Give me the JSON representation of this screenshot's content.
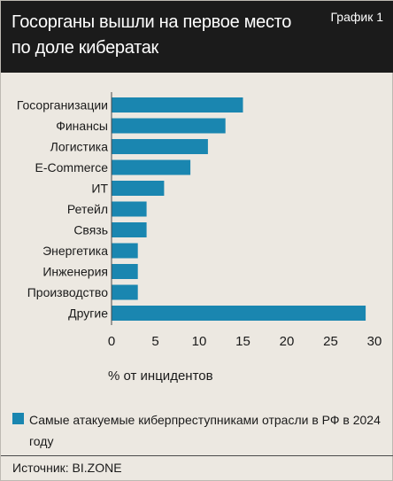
{
  "header": {
    "title": "Госорганы вышли на первое место по доле кибератак",
    "tag": "График 1"
  },
  "chart_data": {
    "type": "bar",
    "orientation": "horizontal",
    "categories": [
      "Госорганизации",
      "Финансы",
      "Логистика",
      "E-Commerce",
      "ИТ",
      "Ретейл",
      "Связь",
      "Энергетика",
      "Инженерия",
      "Производство",
      "Другие"
    ],
    "values": [
      15,
      13,
      11,
      9,
      6,
      4,
      4,
      3,
      3,
      3,
      29
    ],
    "xlabel": "% от инцидентов",
    "xlim": [
      0,
      30
    ],
    "xticks": [
      0,
      5,
      10,
      15,
      20,
      25,
      30
    ],
    "grid": false,
    "series": [
      {
        "name": "Самые атакуемые киберпреступниками отрасли в РФ в 2024 году",
        "values": [
          15,
          13,
          11,
          9,
          6,
          4,
          4,
          3,
          3,
          3,
          29
        ]
      }
    ],
    "bar_color": "#1a86b0"
  },
  "footer": {
    "source": "Источник: BI.ZONE"
  }
}
